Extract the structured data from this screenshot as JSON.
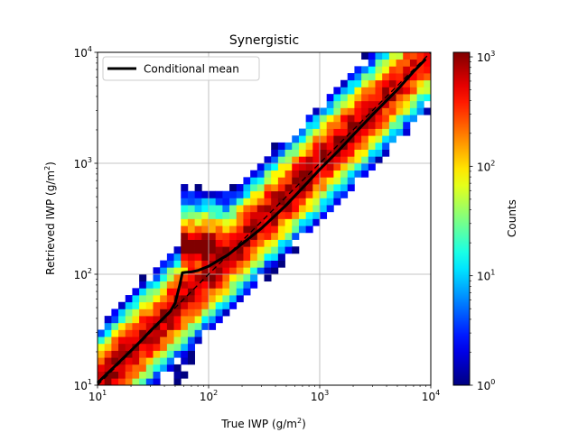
{
  "chart_data": {
    "type": "heatmap",
    "title": "Synergistic",
    "xlabel_main": "True IWP (g/m",
    "xlabel_sup": "2",
    "xlabel_end": ")",
    "ylabel_main": "Retrieved IWP (g/m",
    "ylabel_sup": "2",
    "ylabel_end": ")",
    "x_scale": "log",
    "y_scale": "log",
    "xlim": [
      10,
      10000
    ],
    "ylim": [
      10,
      10000
    ],
    "grid": true,
    "x_ticks": [
      {
        "value": 10,
        "base": "10",
        "exp": "1"
      },
      {
        "value": 100,
        "base": "10",
        "exp": "2"
      },
      {
        "value": 1000,
        "base": "10",
        "exp": "3"
      },
      {
        "value": 10000,
        "base": "10",
        "exp": "4"
      }
    ],
    "y_ticks": [
      {
        "value": 10,
        "base": "10",
        "exp": "1"
      },
      {
        "value": 100,
        "base": "10",
        "exp": "2"
      },
      {
        "value": 1000,
        "base": "10",
        "exp": "3"
      },
      {
        "value": 10000,
        "base": "10",
        "exp": "4"
      }
    ],
    "colorbar": {
      "label": "Counts",
      "scale": "log",
      "colormap": "jet",
      "range": [
        1,
        1100
      ],
      "ticks": [
        {
          "value": 1,
          "base": "10",
          "exp": "0"
        },
        {
          "value": 10,
          "base": "10",
          "exp": "1"
        },
        {
          "value": 100,
          "base": "10",
          "exp": "2"
        },
        {
          "value": 1000,
          "base": "10",
          "exp": "3"
        }
      ]
    },
    "legend": {
      "position": "top-left",
      "entry": "Conditional mean",
      "color": "#000000"
    },
    "series": [
      {
        "name": "Conditional mean",
        "style": "solid",
        "color": "#000000",
        "x": [
          10,
          12,
          15,
          20,
          25,
          30,
          35,
          40,
          45,
          50,
          55,
          58,
          62,
          70,
          80,
          100,
          150,
          200,
          300,
          400,
          500,
          700,
          1000,
          1500,
          2000,
          3000,
          5000,
          7000,
          9000
        ],
        "y": [
          10.5,
          12.5,
          15.5,
          20.5,
          25.5,
          31,
          36,
          41,
          46,
          55,
          80,
          103,
          104,
          105,
          108,
          118,
          150,
          188,
          260,
          340,
          420,
          600,
          880,
          1320,
          1800,
          2750,
          4600,
          6700,
          8700
        ]
      },
      {
        "name": "",
        "style": "dashed",
        "color": "#000000",
        "x": [
          10,
          100,
          1000,
          10000
        ],
        "y": [
          10,
          100,
          1000,
          10000
        ]
      }
    ],
    "heatmap": {
      "description_free": true,
      "bins_per_decade": 16,
      "diag_peak_counts": 900,
      "bump_region_x": [
        58,
        300
      ],
      "bump_region_y": [
        100,
        400
      ],
      "bump_peak_counts": 1100
    }
  }
}
